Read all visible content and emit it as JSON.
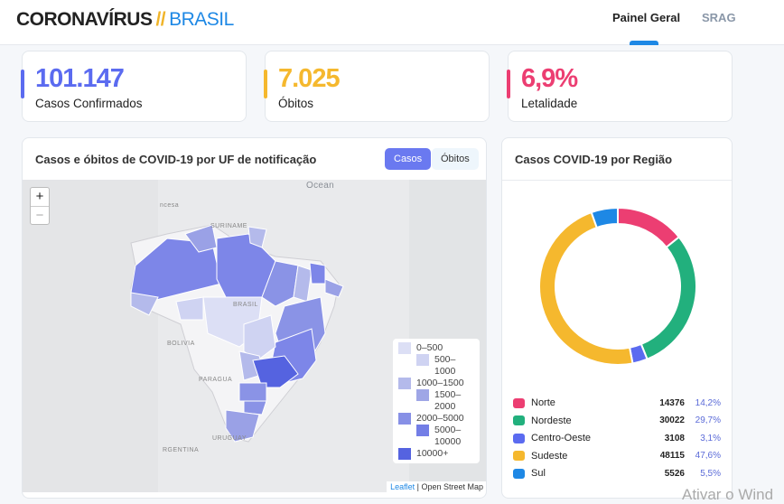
{
  "header": {
    "logo_main": "CORONAVÍRUS",
    "logo_sep": "//",
    "logo_sub": "BRASIL",
    "nav": [
      {
        "label": "Painel Geral",
        "active": true
      },
      {
        "label": "SRAG",
        "active": false
      }
    ]
  },
  "kpis": [
    {
      "value": "101.147",
      "label": "Casos Confirmados",
      "color": "#5b6bf0"
    },
    {
      "value": "7.025",
      "label": "Óbitos",
      "color": "#f5b82e"
    },
    {
      "value": "6,9%",
      "label": "Letalidade",
      "color": "#ec3e72"
    }
  ],
  "map_card": {
    "title": "Casos e óbitos de COVID-19 por UF de notificação",
    "btn_casos": "Casos",
    "btn_obitos": "Óbitos",
    "zoom_in": "+",
    "zoom_out": "−",
    "labels": [
      "ncesa",
      "SURINAME",
      "BRASIL",
      "BOLIVIA",
      "PARAGUA",
      "URUGUAY",
      "RGENTINA",
      "Ocean"
    ],
    "legend": [
      "0–500",
      "500–1000",
      "1000–1500",
      "1500–2000",
      "2000–5000",
      "5000–10000",
      "10000+"
    ],
    "legend_colors": [
      "#dcdff5",
      "#cfd3f2",
      "#b4baeb",
      "#9fa6e6",
      "#8790e6",
      "#737ee6",
      "#5563e0"
    ],
    "attribution_link": "Leaflet",
    "attribution_text": " | Open Street Map"
  },
  "region_card": {
    "title": "Casos COVID-19 por Região",
    "regions": [
      {
        "name": "Norte",
        "value": "14376",
        "pct": "14,2%",
        "n": 14376,
        "color": "#ec3e72"
      },
      {
        "name": "Nordeste",
        "value": "30022",
        "pct": "29,7%",
        "n": 30022,
        "color": "#22b07d"
      },
      {
        "name": "Centro-Oeste",
        "value": "3108",
        "pct": "3,1%",
        "n": 3108,
        "color": "#5b6bf0"
      },
      {
        "name": "Sudeste",
        "value": "48115",
        "pct": "47,6%",
        "n": 48115,
        "color": "#f5b82e"
      },
      {
        "name": "Sul",
        "value": "5526",
        "pct": "5,5%",
        "n": 5526,
        "color": "#1e88e5"
      }
    ]
  },
  "watermark": "Ativar o Wind"
}
